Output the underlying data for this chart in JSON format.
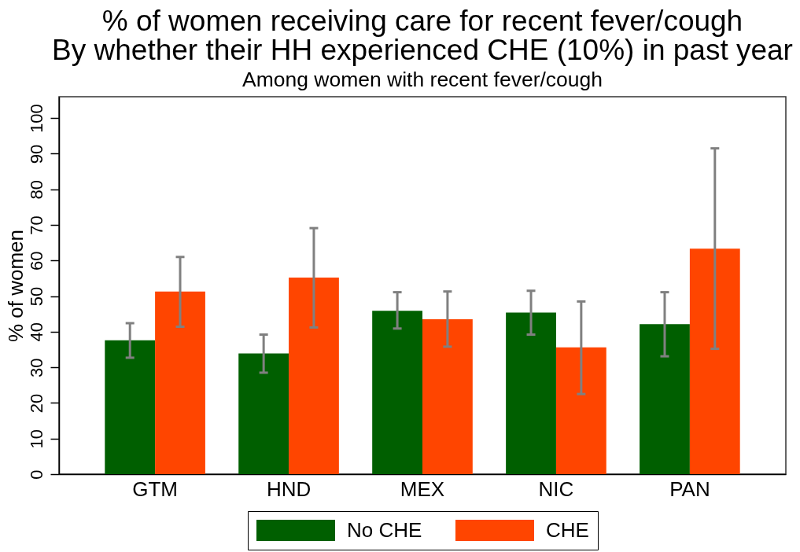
{
  "chart_data": {
    "type": "bar",
    "title": "% of women receiving care for recent fever/cough\nBy whether their HH experienced CHE (10%) in past year",
    "subtitle": "Among women with recent fever/cough",
    "ylabel": "% of women",
    "categories": [
      "GTM",
      "HND",
      "MEX",
      "NIC",
      "PAN"
    ],
    "series": [
      {
        "name": "No CHE",
        "color": "#005f00",
        "values": [
          37.6,
          33.9,
          45.9,
          45.4,
          42.1
        ],
        "errors": [
          [
            32.7,
            42.4
          ],
          [
            28.5,
            39.2
          ],
          [
            40.9,
            51.1
          ],
          [
            39.2,
            51.5
          ],
          [
            33.1,
            51.1
          ]
        ]
      },
      {
        "name": "CHE",
        "color": "#ff4500",
        "values": [
          51.3,
          55.2,
          43.5,
          35.6,
          63.3
        ],
        "errors": [
          [
            41.4,
            61.0
          ],
          [
            41.2,
            69.1
          ],
          [
            35.8,
            51.3
          ],
          [
            22.5,
            48.5
          ],
          [
            35.2,
            91.5
          ]
        ]
      }
    ],
    "ylim": [
      0,
      106
    ],
    "yticks": [
      0,
      10,
      20,
      30,
      40,
      50,
      60,
      70,
      80,
      90,
      100
    ],
    "legend": "bottom"
  }
}
